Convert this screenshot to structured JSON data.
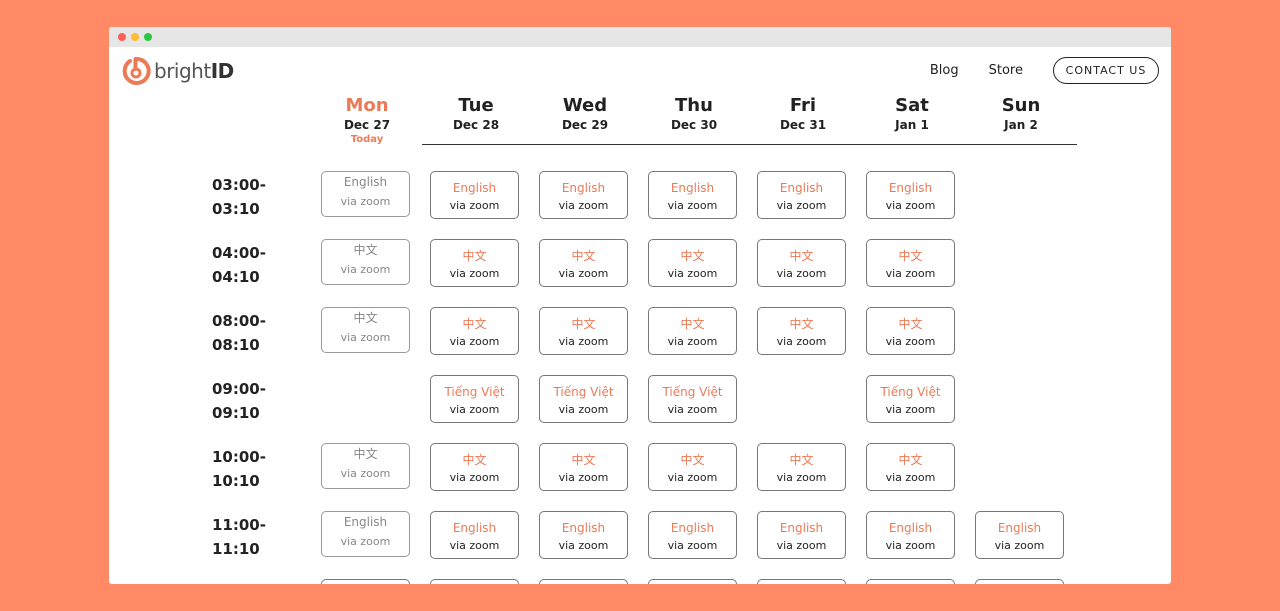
{
  "brand": {
    "name_light": "bright",
    "name_bold": "ID",
    "accent": "#ec7a57",
    "background": "#ff8a65"
  },
  "nav": {
    "blog": "Blog",
    "store": "Store",
    "contact": "CONTACT US"
  },
  "days": [
    {
      "name": "Mon",
      "date": "Dec 27",
      "today": "Today"
    },
    {
      "name": "Tue",
      "date": "Dec 28"
    },
    {
      "name": "Wed",
      "date": "Dec 29"
    },
    {
      "name": "Thu",
      "date": "Dec 30"
    },
    {
      "name": "Fri",
      "date": "Dec 31"
    },
    {
      "name": "Sat",
      "date": "Jan 1"
    },
    {
      "name": "Sun",
      "date": "Jan 2"
    }
  ],
  "via_label": "via zoom",
  "rows": [
    {
      "start": "03:00-",
      "end": "03:10",
      "slots": [
        "English",
        "English",
        "English",
        "English",
        "English",
        "English",
        null
      ]
    },
    {
      "start": "04:00-",
      "end": "04:10",
      "slots": [
        "中文",
        "中文",
        "中文",
        "中文",
        "中文",
        "中文",
        null
      ]
    },
    {
      "start": "08:00-",
      "end": "08:10",
      "slots": [
        "中文",
        "中文",
        "中文",
        "中文",
        "中文",
        "中文",
        null
      ]
    },
    {
      "start": "09:00-",
      "end": "09:10",
      "slots": [
        null,
        "Tiếng Việt",
        "Tiếng Việt",
        "Tiếng Việt",
        null,
        "Tiếng Việt",
        null
      ]
    },
    {
      "start": "10:00-",
      "end": "10:10",
      "slots": [
        "中文",
        "中文",
        "中文",
        "中文",
        "中文",
        "中文",
        null
      ]
    },
    {
      "start": "11:00-",
      "end": "11:10",
      "slots": [
        "English",
        "English",
        "English",
        "English",
        "English",
        "English",
        "English"
      ]
    }
  ]
}
